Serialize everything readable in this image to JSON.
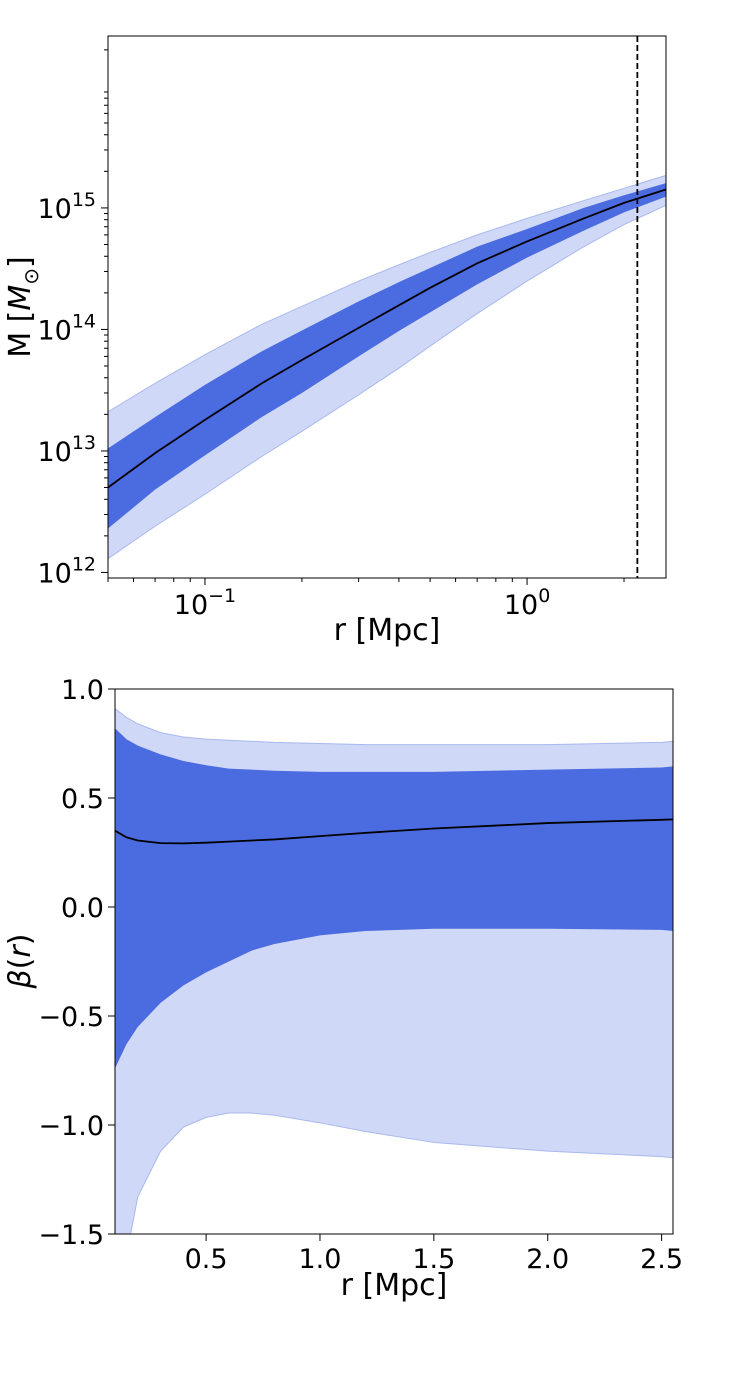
{
  "chart_data": [
    {
      "type": "area",
      "xlabel": "r [Mpc]",
      "ylabel": "M [M_⊙]",
      "xscale": "log",
      "yscale": "log",
      "xlim": [
        0.05,
        2.7
      ],
      "ylim": [
        900000000000,
        26000000000000000
      ],
      "x_ticks": [
        0.1,
        1.0
      ],
      "x_tick_labels": [
        {
          "base": "10",
          "exp": "−1"
        },
        {
          "base": "10",
          "exp": "0"
        }
      ],
      "y_ticks": [
        1000000000000.0,
        10000000000000.0,
        100000000000000.0,
        1000000000000000.0
      ],
      "y_tick_labels": [
        {
          "base": "10",
          "exp": "12"
        },
        {
          "base": "10",
          "exp": "13"
        },
        {
          "base": "10",
          "exp": "14"
        },
        {
          "base": "10",
          "exp": "15"
        }
      ],
      "vline": {
        "x": 2.2,
        "style": "dashed"
      },
      "x": [
        0.05,
        0.07,
        0.1,
        0.15,
        0.2,
        0.3,
        0.4,
        0.5,
        0.7,
        1.0,
        1.5,
        2.0,
        2.7
      ],
      "median": [
        5000000000000.0,
        9600000000000.0,
        18000000000000.0,
        36000000000000.0,
        56000000000000.0,
        103000000000000.0,
        158000000000000.0,
        220000000000000.0,
        350000000000000.0,
        530000000000000.0,
        820000000000000.0,
        1100000000000000.0,
        1420000000000000.0
      ],
      "band_inner_upper": [
        10500000000000.0,
        19000000000000.0,
        35000000000000.0,
        66000000000000.0,
        98000000000000.0,
        170000000000000.0,
        245000000000000.0,
        320000000000000.0,
        480000000000000.0,
        670000000000000.0,
        1000000000000000.0,
        1270000000000000.0,
        1600000000000000.0
      ],
      "band_inner_lower": [
        2300000000000.0,
        4800000000000.0,
        9200000000000.0,
        19000000000000.0,
        30000000000000.0,
        60000000000000.0,
        97000000000000.0,
        138000000000000.0,
        235000000000000.0,
        390000000000000.0,
        650000000000000.0,
        920000000000000.0,
        1240000000000000.0
      ],
      "band_outer_upper": [
        21000000000000.0,
        36000000000000.0,
        62000000000000.0,
        110000000000000.0,
        155000000000000.0,
        250000000000000.0,
        340000000000000.0,
        430000000000000.0,
        600000000000000.0,
        820000000000000.0,
        1150000000000000.0,
        1450000000000000.0,
        1850000000000000.0
      ],
      "band_outer_lower": [
        1300000000000.0,
        2400000000000.0,
        4400000000000.0,
        9000000000000.0,
        14500000000000.0,
        29000000000000.0,
        48000000000000.0,
        73000000000000.0,
        135000000000000.0,
        250000000000000.0,
        480000000000000.0,
        730000000000000.0,
        1050000000000000.0
      ],
      "colors": {
        "inner_band": "#4b6be0",
        "outer_band": "#cfd8f6",
        "outer_edge": "#a9b8ee",
        "line": "#000000"
      }
    },
    {
      "type": "area",
      "xlabel": "r [Mpc]",
      "ylabel": "β(r)",
      "xlim": [
        0.1,
        2.55
      ],
      "ylim": [
        -1.5,
        1.0
      ],
      "x_ticks": [
        0.5,
        1.0,
        1.5,
        2.0,
        2.5
      ],
      "x_tick_labels": [
        "0.5",
        "1.0",
        "1.5",
        "2.0",
        "2.5"
      ],
      "y_ticks": [
        -1.5,
        -1.0,
        -0.5,
        0.0,
        0.5,
        1.0
      ],
      "y_tick_labels": [
        "−1.5",
        "−1.0",
        "−0.5",
        "0.0",
        "0.5",
        "1.0"
      ],
      "x": [
        0.1,
        0.15,
        0.2,
        0.3,
        0.4,
        0.5,
        0.6,
        0.7,
        0.8,
        1.0,
        1.2,
        1.5,
        2.0,
        2.5,
        2.55
      ],
      "median": [
        0.35,
        0.32,
        0.305,
        0.293,
        0.292,
        0.295,
        0.3,
        0.305,
        0.31,
        0.325,
        0.34,
        0.36,
        0.385,
        0.4,
        0.402
      ],
      "band_inner_upper": [
        0.82,
        0.77,
        0.74,
        0.7,
        0.67,
        0.65,
        0.635,
        0.63,
        0.625,
        0.62,
        0.62,
        0.62,
        0.63,
        0.64,
        0.645
      ],
      "band_inner_lower": [
        -0.74,
        -0.63,
        -0.55,
        -0.44,
        -0.36,
        -0.3,
        -0.25,
        -0.2,
        -0.17,
        -0.13,
        -0.11,
        -0.1,
        -0.1,
        -0.105,
        -0.11
      ],
      "band_outer_upper": [
        0.91,
        0.87,
        0.84,
        0.8,
        0.78,
        0.77,
        0.765,
        0.76,
        0.755,
        0.75,
        0.745,
        0.745,
        0.745,
        0.755,
        0.76
      ],
      "band_outer_lower": [
        -2.0,
        -1.6,
        -1.33,
        -1.12,
        -1.01,
        -0.965,
        -0.945,
        -0.945,
        -0.955,
        -0.99,
        -1.03,
        -1.08,
        -1.12,
        -1.145,
        -1.15
      ],
      "colors": {
        "inner_band": "#4b6be0",
        "outer_band": "#cfd8f6",
        "outer_edge": "#a9b8ee",
        "line": "#000000"
      }
    }
  ]
}
